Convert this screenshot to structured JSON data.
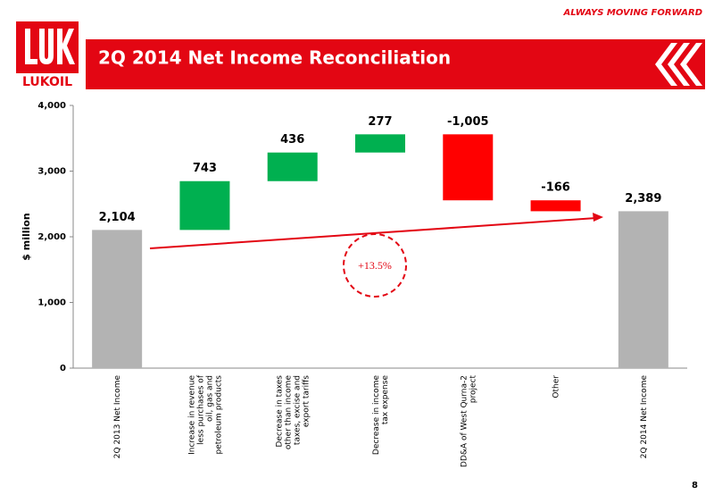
{
  "header": {
    "tagline": "ALWAYS MOVING FORWARD",
    "logo": "LUKOIL",
    "title": "2Q 2014 Net Income Reconciliation",
    "page_number": "8"
  },
  "chart_data": {
    "type": "waterfall",
    "y_label": "$ million",
    "categories": [
      "2Q 2013 Net Income",
      "Increase in revenue less purchases of oil, gas and petroleum products",
      "Decrease in taxes other than income taxes, excise and export tariffs",
      "Decrease in income tax expense",
      "DD&A of West Qurna-2 project",
      "Other",
      "2Q 2014 Net Income"
    ],
    "values": [
      2104,
      743,
      436,
      277,
      -1005,
      -166,
      2389
    ],
    "value_labels": [
      "2,104",
      "743",
      "436",
      "277",
      "-1,005",
      "-166",
      "2,389"
    ],
    "colors": [
      "#b3b3b3",
      "#00b050",
      "#00b050",
      "#00b050",
      "#ff0000",
      "#ff0000",
      "#b3b3b3"
    ],
    "ylim": [
      0,
      4000
    ],
    "yticks": [
      0,
      {
        "value": 1000,
        "label": "1,000"
      },
      {
        "value": 2000,
        "label": "2,000"
      },
      {
        "value": 3000,
        "label": "3,000"
      },
      {
        "value": 4000,
        "label": "4,000"
      }
    ],
    "annotation": "+13.5%"
  }
}
